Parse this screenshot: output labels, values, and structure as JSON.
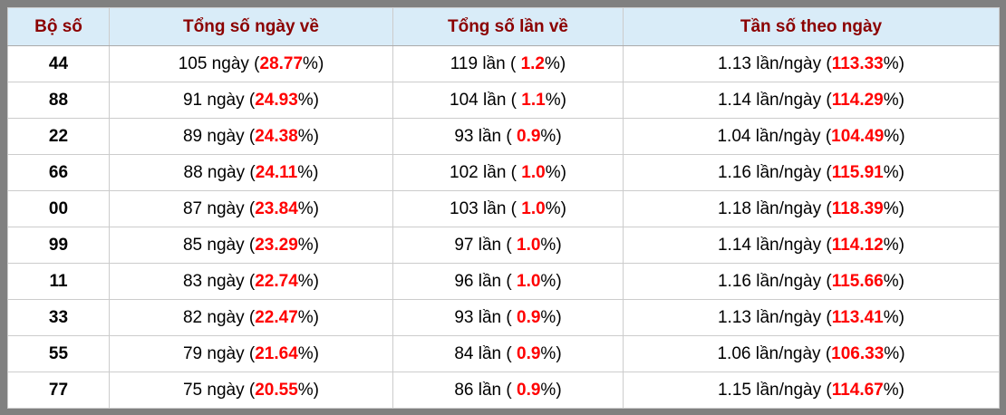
{
  "page": {
    "frame_color": "#808080",
    "header_bg": "#d9ecf8",
    "header_text_color": "#8b0000",
    "highlight_color": "#ff0000"
  },
  "table": {
    "headers": {
      "pair": "Bộ số",
      "total_days": "Tổng số ngày về",
      "total_times": "Tổng số lần về",
      "frequency": "Tần số theo ngày"
    },
    "rows": [
      {
        "pair": "44",
        "days_prefix": "105 ngày (",
        "days_value": "28.77",
        "days_suffix": "%)",
        "times_prefix": "119 lần ( ",
        "times_value": "1.2",
        "times_suffix": "%)",
        "freq_prefix": "1.13 lần/ngày (",
        "freq_value": "113.33",
        "freq_suffix": "%)"
      },
      {
        "pair": "88",
        "days_prefix": "91 ngày (",
        "days_value": "24.93",
        "days_suffix": "%)",
        "times_prefix": "104 lần ( ",
        "times_value": "1.1",
        "times_suffix": "%)",
        "freq_prefix": "1.14 lần/ngày (",
        "freq_value": "114.29",
        "freq_suffix": "%)"
      },
      {
        "pair": "22",
        "days_prefix": "89 ngày (",
        "days_value": "24.38",
        "days_suffix": "%)",
        "times_prefix": "93 lần ( ",
        "times_value": "0.9",
        "times_suffix": "%)",
        "freq_prefix": "1.04 lần/ngày (",
        "freq_value": "104.49",
        "freq_suffix": "%)"
      },
      {
        "pair": "66",
        "days_prefix": "88 ngày (",
        "days_value": "24.11",
        "days_suffix": "%)",
        "times_prefix": "102 lần ( ",
        "times_value": "1.0",
        "times_suffix": "%)",
        "freq_prefix": "1.16 lần/ngày (",
        "freq_value": "115.91",
        "freq_suffix": "%)"
      },
      {
        "pair": "00",
        "days_prefix": "87 ngày (",
        "days_value": "23.84",
        "days_suffix": "%)",
        "times_prefix": "103 lần ( ",
        "times_value": "1.0",
        "times_suffix": "%)",
        "freq_prefix": "1.18 lần/ngày (",
        "freq_value": "118.39",
        "freq_suffix": "%)"
      },
      {
        "pair": "99",
        "days_prefix": "85 ngày (",
        "days_value": "23.29",
        "days_suffix": "%)",
        "times_prefix": "97 lần ( ",
        "times_value": "1.0",
        "times_suffix": "%)",
        "freq_prefix": "1.14 lần/ngày (",
        "freq_value": "114.12",
        "freq_suffix": "%)"
      },
      {
        "pair": "11",
        "days_prefix": "83 ngày (",
        "days_value": "22.74",
        "days_suffix": "%)",
        "times_prefix": "96 lần ( ",
        "times_value": "1.0",
        "times_suffix": "%)",
        "freq_prefix": "1.16 lần/ngày (",
        "freq_value": "115.66",
        "freq_suffix": "%)"
      },
      {
        "pair": "33",
        "days_prefix": "82 ngày (",
        "days_value": "22.47",
        "days_suffix": "%)",
        "times_prefix": "93 lần ( ",
        "times_value": "0.9",
        "times_suffix": "%)",
        "freq_prefix": "1.13 lần/ngày (",
        "freq_value": "113.41",
        "freq_suffix": "%)"
      },
      {
        "pair": "55",
        "days_prefix": "79 ngày (",
        "days_value": "21.64",
        "days_suffix": "%)",
        "times_prefix": "84 lần ( ",
        "times_value": "0.9",
        "times_suffix": "%)",
        "freq_prefix": "1.06 lần/ngày (",
        "freq_value": "106.33",
        "freq_suffix": "%)"
      },
      {
        "pair": "77",
        "days_prefix": "75 ngày (",
        "days_value": "20.55",
        "days_suffix": "%)",
        "times_prefix": "86 lần ( ",
        "times_value": "0.9",
        "times_suffix": "%)",
        "freq_prefix": "1.15 lần/ngày (",
        "freq_value": "114.67",
        "freq_suffix": "%)"
      }
    ]
  }
}
